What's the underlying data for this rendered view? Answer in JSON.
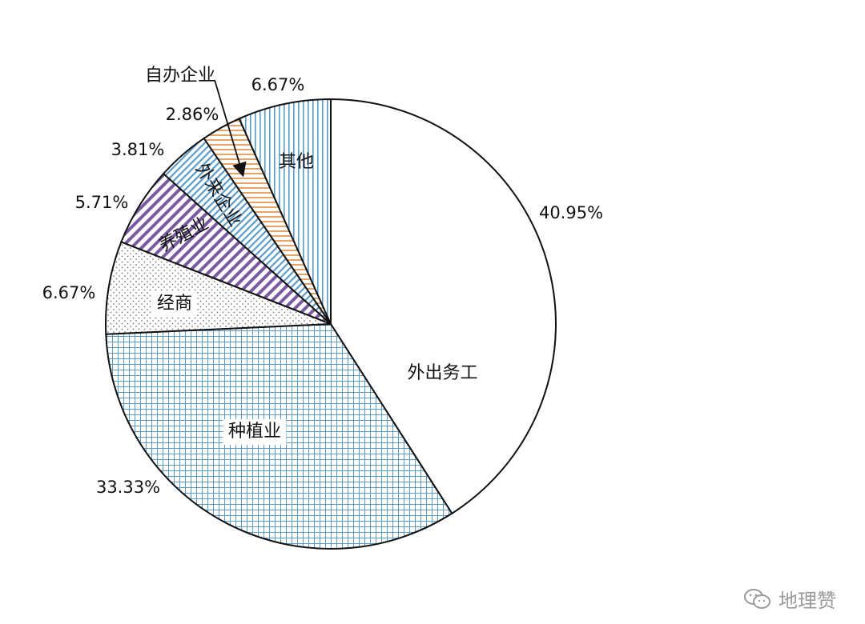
{
  "chart_data": {
    "type": "pie",
    "slices": [
      {
        "label": "外出务工",
        "value": 40.95,
        "value_label": "40.95%",
        "pattern": "blank",
        "color": "#1a1a1a"
      },
      {
        "label": "种植业",
        "value": 33.33,
        "value_label": "33.33%",
        "pattern": "grid",
        "color": "#5b9bc9"
      },
      {
        "label": "经商",
        "value": 6.67,
        "value_label": "6.67%",
        "pattern": "dots",
        "color": "#7a7a7a"
      },
      {
        "label": "养殖业",
        "value": 5.71,
        "value_label": "5.71%",
        "pattern": "diagonal",
        "color": "#7a5aa0"
      },
      {
        "label": "外来企业",
        "value": 3.81,
        "value_label": "3.81%",
        "pattern": "diagonal",
        "color": "#5b9bc9"
      },
      {
        "label": "自办企业",
        "value": 2.86,
        "value_label": "2.86%",
        "pattern": "horizontal",
        "color": "#e3a46a"
      },
      {
        "label": "其他",
        "value": 6.67,
        "value_label": "6.67%",
        "pattern": "vertical",
        "color": "#5b9bc9"
      }
    ],
    "start": "12 o'clock",
    "direction": "clockwise"
  },
  "watermark": {
    "text": "地理赞",
    "icon": "wechat-icon"
  }
}
